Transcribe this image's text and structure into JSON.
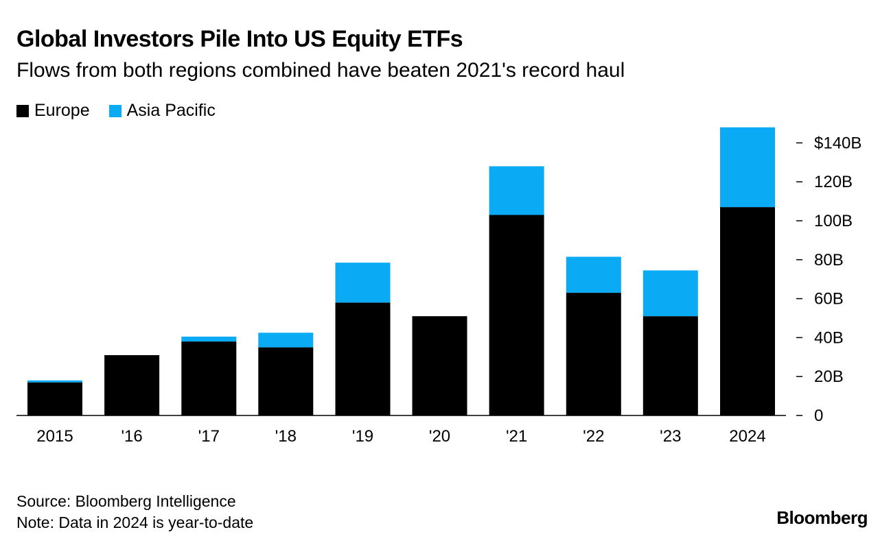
{
  "chart_data": {
    "type": "bar",
    "stacked": true,
    "title": "Global Investors Pile Into US Equity ETFs",
    "subtitle": "Flows from both regions combined have beaten 2021's record haul",
    "categories": [
      "2015",
      "'16",
      "'17",
      "'18",
      "'19",
      "'20",
      "'21",
      "'22",
      "'23",
      "2024"
    ],
    "series": [
      {
        "name": "Europe",
        "color": "#000000",
        "values": [
          17,
          31,
          38,
          35,
          58,
          51,
          103,
          63,
          51,
          107
        ]
      },
      {
        "name": "Asia Pacific",
        "color": "#0aaaf5",
        "values": [
          1,
          0,
          2.5,
          7.5,
          20.5,
          0,
          25,
          18.5,
          23.5,
          41
        ]
      }
    ],
    "ylim": [
      0,
      150
    ],
    "yticks": [
      0,
      20,
      40,
      60,
      80,
      100,
      120,
      140
    ],
    "ytick_labels": [
      "0",
      "20B",
      "40B",
      "60B",
      "80B",
      "100B",
      "120B",
      "$140B"
    ],
    "y_axis_position": "right",
    "legend_position": "top-left",
    "source": "Source: Bloomberg Intelligence",
    "note": "Note: Data in 2024 is year-to-date",
    "brand": "Bloomberg"
  }
}
